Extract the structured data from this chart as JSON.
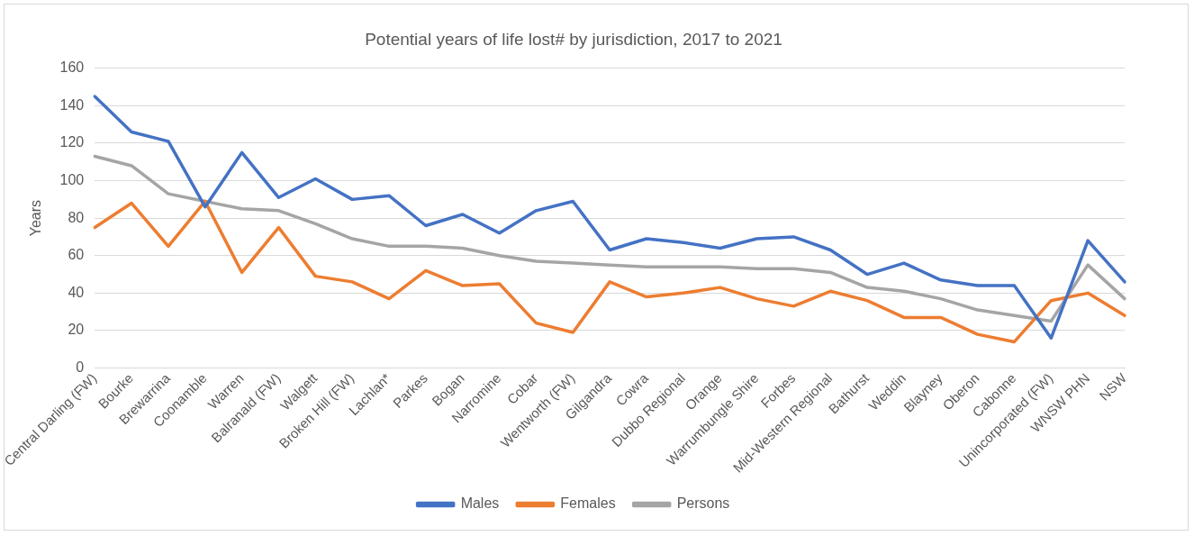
{
  "chart_data": {
    "type": "line",
    "title": "Potential years of life lost# by jurisdiction, 2017 to 2021",
    "ylabel": "Years",
    "categories": [
      "Central Darling (FW)",
      "Bourke",
      "Brewarrina",
      "Coonamble",
      "Warren",
      "Balranald (FW)",
      "Walgett",
      "Broken Hill (FW)",
      "Lachlan*",
      "Parkes",
      "Bogan",
      "Narromine",
      "Cobar",
      "Wentworth (FW)",
      "Gilgandra",
      "Cowra",
      "Dubbo Regional",
      "Orange",
      "Warrumbungle Shire",
      "Forbes",
      "Mid-Western Regional",
      "Bathurst",
      "Weddin",
      "Blayney",
      "Oberon",
      "Cabonne",
      "Unincorporated (FW)",
      "WNSW PHN",
      "NSW"
    ],
    "series": [
      {
        "name": "Males",
        "color": "#4472c4",
        "values": [
          145,
          126,
          121,
          86,
          115,
          91,
          101,
          90,
          92,
          76,
          82,
          72,
          84,
          89,
          63,
          69,
          67,
          64,
          69,
          70,
          63,
          50,
          56,
          47,
          44,
          44,
          16,
          68,
          46
        ]
      },
      {
        "name": "Females",
        "color": "#ed7d31",
        "values": [
          75,
          88,
          65,
          89,
          51,
          75,
          49,
          46,
          37,
          52,
          44,
          45,
          24,
          19,
          46,
          38,
          40,
          43,
          37,
          33,
          41,
          36,
          27,
          27,
          18,
          14,
          36,
          40,
          28
        ]
      },
      {
        "name": "Persons",
        "color": "#a5a5a5",
        "values": [
          113,
          108,
          93,
          89,
          85,
          84,
          77,
          69,
          65,
          65,
          64,
          60,
          57,
          56,
          55,
          54,
          54,
          54,
          53,
          53,
          51,
          43,
          41,
          37,
          31,
          28,
          25,
          55,
          37
        ]
      }
    ],
    "ylim": [
      0,
      160
    ],
    "yticks": [
      0,
      20,
      40,
      60,
      80,
      100,
      120,
      140,
      160
    ],
    "grid": "y",
    "legend": "bottom",
    "marker": "none",
    "line_style": "solid"
  }
}
